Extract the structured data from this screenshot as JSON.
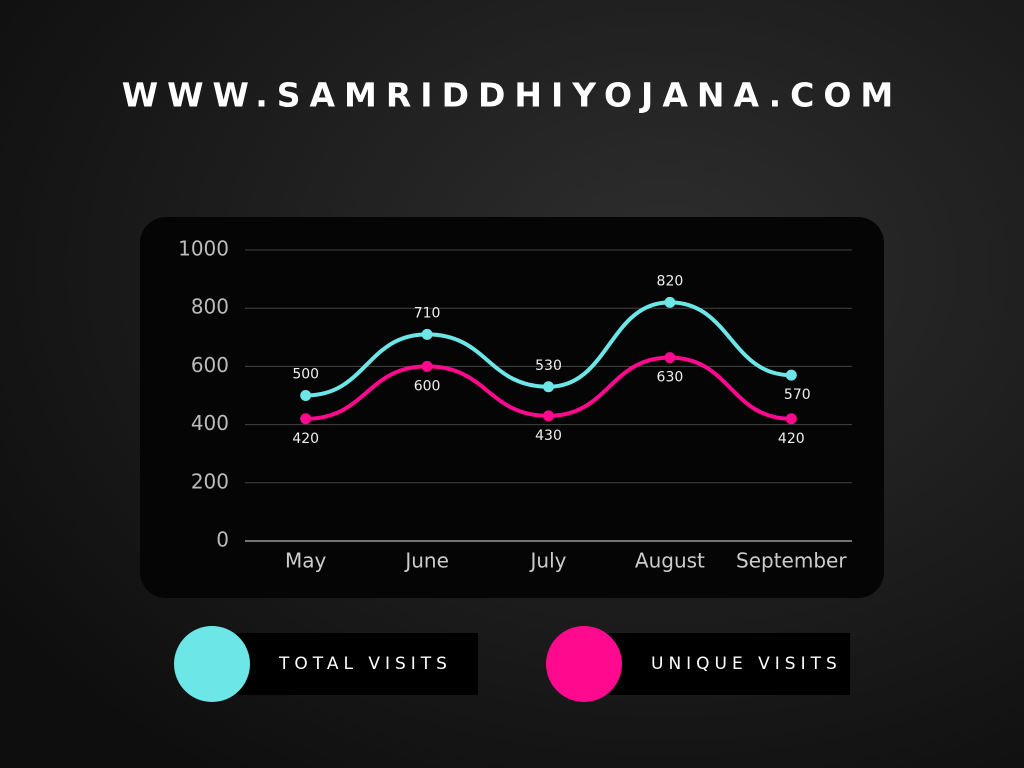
{
  "chart_data": {
    "type": "line",
    "title": "WWW.SAMRIDDHIYOJANA.COM",
    "categories": [
      "May",
      "June",
      "July",
      "August",
      "September"
    ],
    "series": [
      {
        "name": "TOTAL VISITS",
        "color": "#6de6e8",
        "values": [
          500,
          710,
          530,
          820,
          570
        ]
      },
      {
        "name": "UNIQUE VISITS",
        "color": "#ff0a8e",
        "values": [
          420,
          600,
          430,
          630,
          420
        ]
      }
    ],
    "ylim": [
      0,
      1000
    ],
    "yticks": [
      0,
      200,
      400,
      600,
      800,
      1000
    ],
    "grid": true
  }
}
